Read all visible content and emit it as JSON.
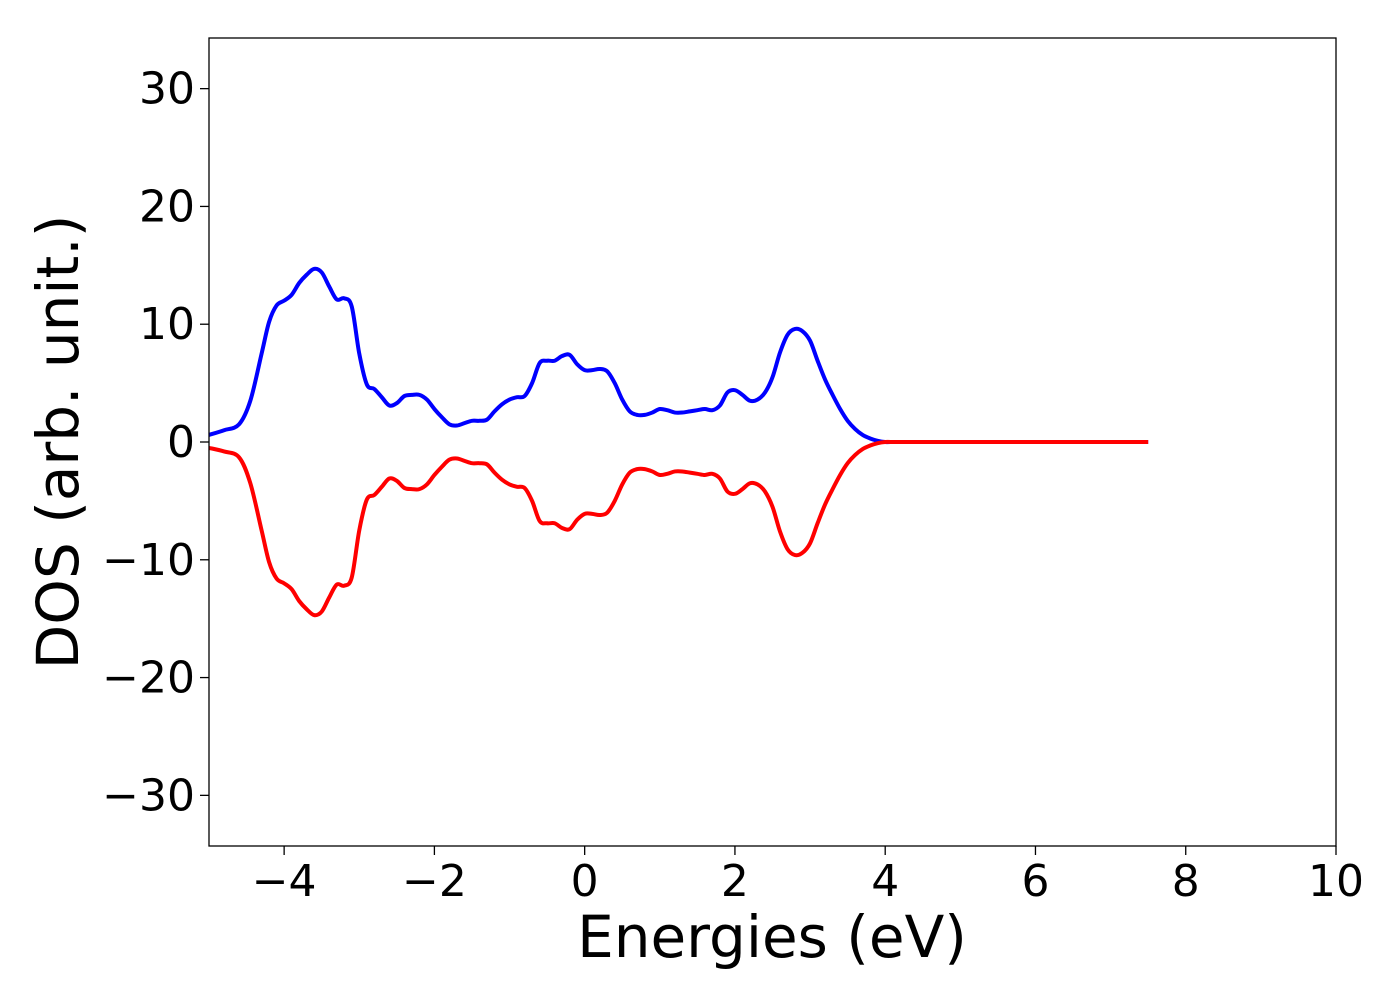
{
  "chart_data": {
    "type": "line",
    "title": "",
    "xlabel": "Energies (eV)",
    "ylabel": "DOS (arb. unit.)",
    "xlim": [
      -5,
      10
    ],
    "ylim": [
      -34.3,
      34.3
    ],
    "x_ticks": [
      -4,
      -2,
      0,
      2,
      4,
      6,
      8,
      10
    ],
    "x_tick_labels": [
      "−4",
      "−2",
      "0",
      "2",
      "4",
      "6",
      "8",
      "10"
    ],
    "y_ticks": [
      30,
      20,
      10,
      0,
      -10,
      -20,
      -30
    ],
    "y_tick_labels": [
      "30",
      "20",
      "10",
      "0",
      "−10",
      "−20",
      "−30"
    ],
    "grid": false,
    "legend": "none",
    "series": [
      {
        "color": "#0000ff",
        "x": [
          -5.0,
          -4.8,
          -4.6,
          -4.45,
          -4.3,
          -4.2,
          -4.1,
          -4.0,
          -3.9,
          -3.8,
          -3.7,
          -3.6,
          -3.5,
          -3.4,
          -3.3,
          -3.2,
          -3.1,
          -3.0,
          -2.9,
          -2.8,
          -2.7,
          -2.6,
          -2.5,
          -2.4,
          -2.3,
          -2.2,
          -2.1,
          -2.0,
          -1.9,
          -1.8,
          -1.7,
          -1.6,
          -1.5,
          -1.4,
          -1.3,
          -1.2,
          -1.1,
          -1.0,
          -0.9,
          -0.8,
          -0.7,
          -0.6,
          -0.5,
          -0.4,
          -0.3,
          -0.2,
          -0.1,
          0.0,
          0.1,
          0.2,
          0.3,
          0.4,
          0.5,
          0.6,
          0.7,
          0.8,
          0.9,
          1.0,
          1.1,
          1.2,
          1.3,
          1.4,
          1.5,
          1.6,
          1.7,
          1.8,
          1.9,
          2.0,
          2.1,
          2.2,
          2.3,
          2.4,
          2.5,
          2.6,
          2.7,
          2.8,
          2.9,
          3.0,
          3.1,
          3.2,
          3.3,
          3.4,
          3.5,
          3.6,
          3.7,
          3.8,
          3.9,
          4.0,
          4.1,
          4.2,
          4.3,
          4.4,
          4.5,
          4.55,
          4.6,
          4.7,
          4.8,
          4.9,
          5.0,
          5.1,
          5.2,
          5.3,
          5.4,
          5.5,
          5.6,
          5.7,
          5.8,
          6.0,
          6.5,
          7.0,
          7.5
        ],
        "y": [
          0.6,
          1.0,
          1.5,
          3.5,
          7.5,
          10.2,
          11.6,
          12.0,
          12.5,
          13.5,
          14.2,
          14.7,
          14.4,
          13.2,
          12.1,
          12.2,
          11.5,
          7.5,
          4.9,
          4.5,
          3.8,
          3.1,
          3.3,
          3.9,
          4.0,
          4.0,
          3.6,
          2.8,
          2.1,
          1.5,
          1.4,
          1.6,
          1.8,
          1.8,
          1.9,
          2.6,
          3.2,
          3.6,
          3.8,
          3.9,
          5.0,
          6.7,
          6.9,
          6.9,
          7.3,
          7.4,
          6.6,
          6.1,
          6.1,
          6.2,
          6.0,
          5.0,
          3.6,
          2.6,
          2.3,
          2.3,
          2.5,
          2.8,
          2.7,
          2.5,
          2.5,
          2.6,
          2.7,
          2.8,
          2.7,
          3.1,
          4.2,
          4.4,
          4.0,
          3.5,
          3.6,
          4.2,
          5.5,
          7.6,
          9.1,
          9.6,
          9.4,
          8.6,
          6.9,
          5.3,
          4.0,
          2.8,
          1.8,
          1.1,
          0.6,
          0.3,
          0.1,
          0.0,
          0.0,
          0.0,
          0.0,
          0.0,
          0.0,
          0.0,
          0.0,
          0.0,
          0.0,
          0.0,
          0.0,
          0.0,
          0.0,
          0.0,
          0.0,
          0.0,
          0.0,
          0.0,
          0.0,
          0.0,
          0.0,
          0.0,
          0.0
        ]
      },
      {
        "color": "#ff0000",
        "x": [
          -5.0,
          -4.8,
          -4.6,
          -4.45,
          -4.3,
          -4.2,
          -4.1,
          -4.0,
          -3.9,
          -3.8,
          -3.7,
          -3.6,
          -3.5,
          -3.4,
          -3.3,
          -3.2,
          -3.1,
          -3.0,
          -2.9,
          -2.8,
          -2.7,
          -2.6,
          -2.5,
          -2.4,
          -2.3,
          -2.2,
          -2.1,
          -2.0,
          -1.9,
          -1.8,
          -1.7,
          -1.6,
          -1.5,
          -1.4,
          -1.3,
          -1.2,
          -1.1,
          -1.0,
          -0.9,
          -0.8,
          -0.7,
          -0.6,
          -0.5,
          -0.4,
          -0.3,
          -0.2,
          -0.1,
          0.0,
          0.1,
          0.2,
          0.3,
          0.4,
          0.5,
          0.6,
          0.7,
          0.8,
          0.9,
          1.0,
          1.1,
          1.2,
          1.3,
          1.4,
          1.5,
          1.6,
          1.7,
          1.8,
          1.9,
          2.0,
          2.1,
          2.2,
          2.3,
          2.4,
          2.5,
          2.6,
          2.7,
          2.8,
          2.9,
          3.0,
          3.1,
          3.2,
          3.3,
          3.4,
          3.5,
          3.6,
          3.7,
          3.8,
          3.9,
          4.0,
          4.1,
          4.2,
          4.3,
          4.4,
          4.5,
          4.55,
          4.6,
          4.7,
          4.8,
          4.9,
          5.0,
          5.1,
          5.2,
          5.3,
          5.4,
          5.5,
          5.6,
          5.7,
          5.8,
          6.0,
          6.5,
          7.0,
          7.5
        ],
        "y": [
          -0.5,
          -0.8,
          -1.3,
          -3.5,
          -7.5,
          -10.2,
          -11.6,
          -12.0,
          -12.5,
          -13.5,
          -14.2,
          -14.7,
          -14.4,
          -13.2,
          -12.1,
          -12.2,
          -11.5,
          -7.5,
          -4.9,
          -4.5,
          -3.8,
          -3.1,
          -3.3,
          -3.9,
          -4.0,
          -4.0,
          -3.6,
          -2.8,
          -2.1,
          -1.5,
          -1.4,
          -1.6,
          -1.8,
          -1.8,
          -1.9,
          -2.6,
          -3.2,
          -3.6,
          -3.8,
          -3.9,
          -5.0,
          -6.7,
          -6.9,
          -6.9,
          -7.3,
          -7.4,
          -6.6,
          -6.1,
          -6.1,
          -6.2,
          -6.0,
          -5.0,
          -3.6,
          -2.6,
          -2.3,
          -2.3,
          -2.5,
          -2.8,
          -2.7,
          -2.5,
          -2.5,
          -2.6,
          -2.7,
          -2.8,
          -2.7,
          -3.1,
          -4.2,
          -4.4,
          -4.0,
          -3.5,
          -3.6,
          -4.2,
          -5.5,
          -7.6,
          -9.1,
          -9.6,
          -9.4,
          -8.6,
          -6.9,
          -5.3,
          -4.0,
          -2.8,
          -1.8,
          -1.1,
          -0.6,
          -0.3,
          -0.1,
          0.0,
          0.0,
          0.0,
          0.0,
          0.0,
          0.0,
          0.0,
          0.0,
          0.0,
          0.0,
          0.0,
          0.0,
          0.0,
          0.0,
          0.0,
          0.0,
          0.0,
          0.0,
          0.0,
          0.0,
          0.0,
          0.0,
          0.0,
          0.0
        ]
      }
    ]
  }
}
